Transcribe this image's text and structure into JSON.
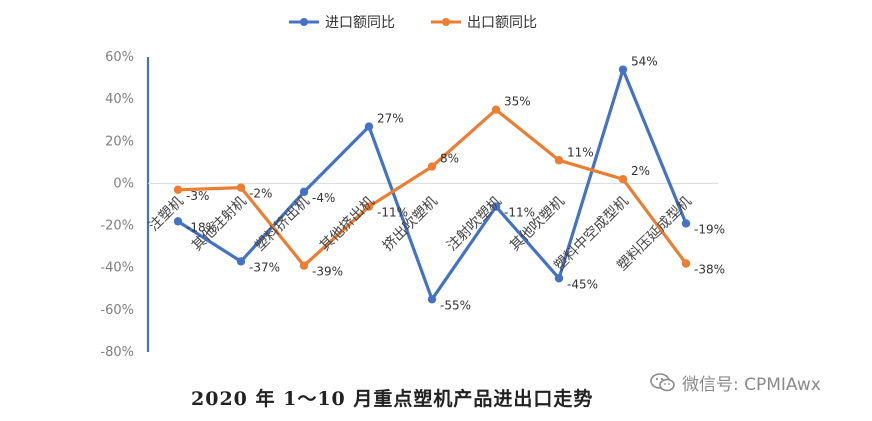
{
  "caption": "2020 年 1～10 月重点塑机产品进出口走势",
  "watermark": {
    "icon": "wechat-icon",
    "text": "微信号: CPMIAwx"
  },
  "chart_data": {
    "type": "line",
    "categories": [
      "注塑机",
      "其他注射机",
      "塑料挤出机",
      "其他挤出机",
      "挤出吹塑机",
      "注射吹塑机",
      "其他吹塑机",
      "塑料中空成型机",
      "塑料压延成型机"
    ],
    "series": [
      {
        "name": "进口额同比",
        "color": "#4472C4",
        "values": [
          -18,
          -37,
          -4,
          27,
          -55,
          -11,
          -45,
          54,
          -19
        ],
        "labels": [
          "-18%",
          "-37%",
          "-4%",
          "27%",
          "-55%",
          "-11%",
          "-45%",
          "54%",
          "-19%"
        ]
      },
      {
        "name": "出口额同比",
        "color": "#ED7D31",
        "values": [
          -3,
          -2,
          -39,
          -11,
          8,
          35,
          11,
          2,
          -38
        ],
        "labels": [
          "-3%",
          "-2%",
          "-39%",
          "-11%",
          "8%",
          "35%",
          "11%",
          "2%",
          "-38%"
        ]
      }
    ],
    "ylim": [
      -80,
      60
    ],
    "yticks": [
      60,
      40,
      20,
      0,
      -20,
      -40,
      -60,
      -80
    ],
    "ytick_labels": [
      "60%",
      "40%",
      "20%",
      "0%",
      "-20%",
      "-40%",
      "-60%",
      "-80%"
    ],
    "legend_position": "top-center",
    "grid": false
  }
}
